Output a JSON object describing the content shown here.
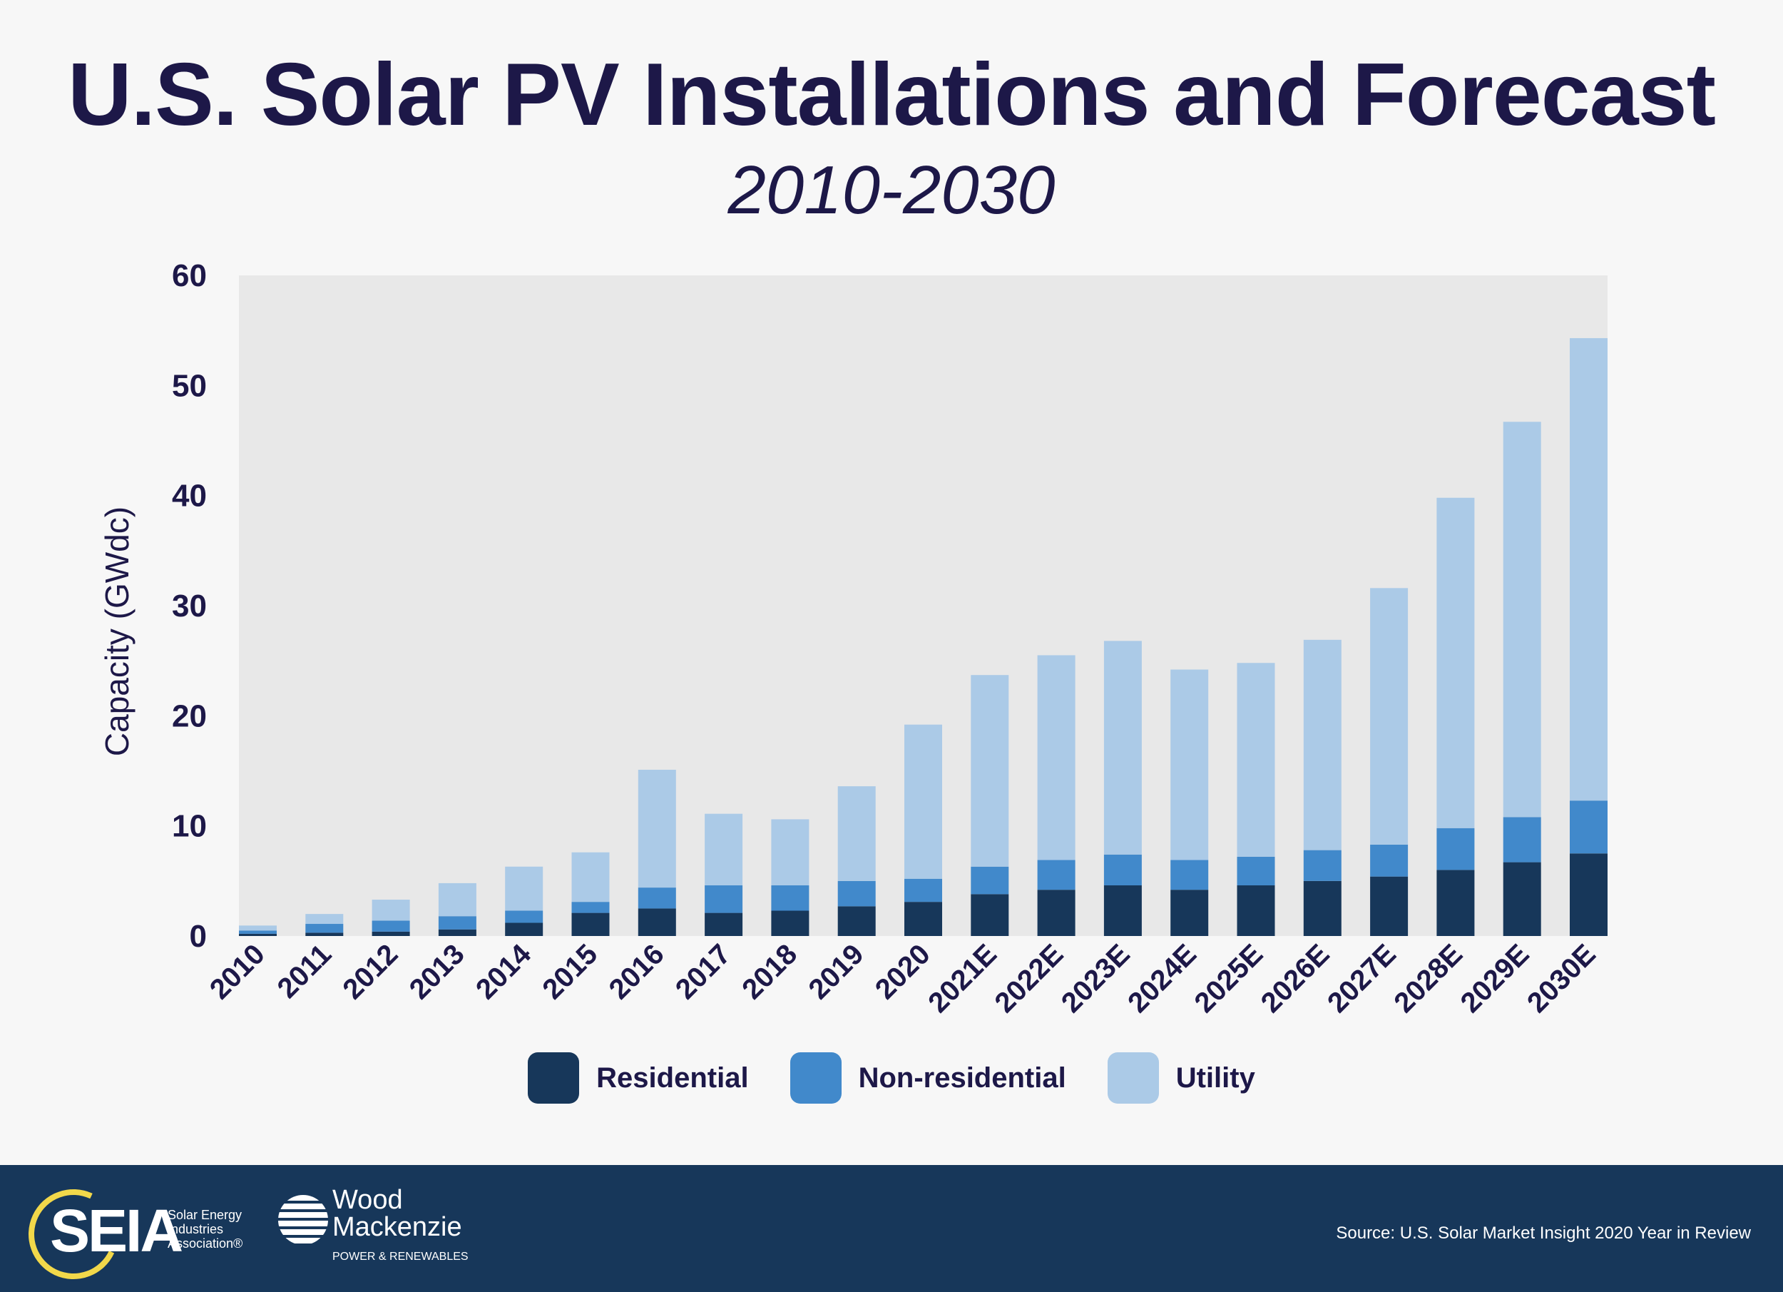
{
  "header": {
    "title": "U.S. Solar PV Installations and Forecast",
    "subtitle": "2010-2030"
  },
  "chart_data": {
    "type": "bar",
    "stacked": true,
    "ylabel": "Capacity (GWdc)",
    "ylim": [
      0,
      60
    ],
    "yticks": [
      "0",
      "10",
      "20",
      "30",
      "40",
      "50",
      "60"
    ],
    "grid": false,
    "legend_position": "bottom",
    "categories": [
      "2010",
      "2011",
      "2012",
      "2013",
      "2014",
      "2015",
      "2016",
      "2017",
      "2018",
      "2019",
      "2020",
      "2021E",
      "2022E",
      "2023E",
      "2024E",
      "2025E",
      "2026E",
      "2027E",
      "2028E",
      "2029E",
      "2030E"
    ],
    "series": [
      {
        "name": "Residential",
        "color": "#17375a",
        "values": [
          0.2,
          0.3,
          0.4,
          0.6,
          1.2,
          2.1,
          2.5,
          2.1,
          2.3,
          2.7,
          3.1,
          3.8,
          4.2,
          4.6,
          4.2,
          4.6,
          5.0,
          5.4,
          6.0,
          6.7,
          7.5
        ]
      },
      {
        "name": "Non-residential",
        "color": "#4189cb",
        "values": [
          0.3,
          0.8,
          1.0,
          1.2,
          1.1,
          1.0,
          1.9,
          2.5,
          2.3,
          2.3,
          2.1,
          2.5,
          2.7,
          2.8,
          2.7,
          2.6,
          2.8,
          2.9,
          3.8,
          4.1,
          4.8
        ]
      },
      {
        "name": "Utility",
        "color": "#abcae7",
        "values": [
          0.45,
          0.9,
          1.9,
          3.0,
          4.0,
          4.5,
          10.7,
          6.5,
          6.0,
          8.6,
          14.0,
          17.4,
          18.6,
          19.4,
          17.3,
          17.6,
          19.1,
          23.3,
          30.0,
          35.9,
          42.0
        ]
      }
    ]
  },
  "footer": {
    "seia_logo": "SEIA",
    "seia_sub": [
      "Solar Energy",
      "Industries",
      "Association®"
    ],
    "wm_logo": [
      "Wood",
      "Mackenzie"
    ],
    "wm_sub": "POWER & RENEWABLES",
    "source": "Source: U.S. Solar Market Insight 2020 Year in Review"
  }
}
